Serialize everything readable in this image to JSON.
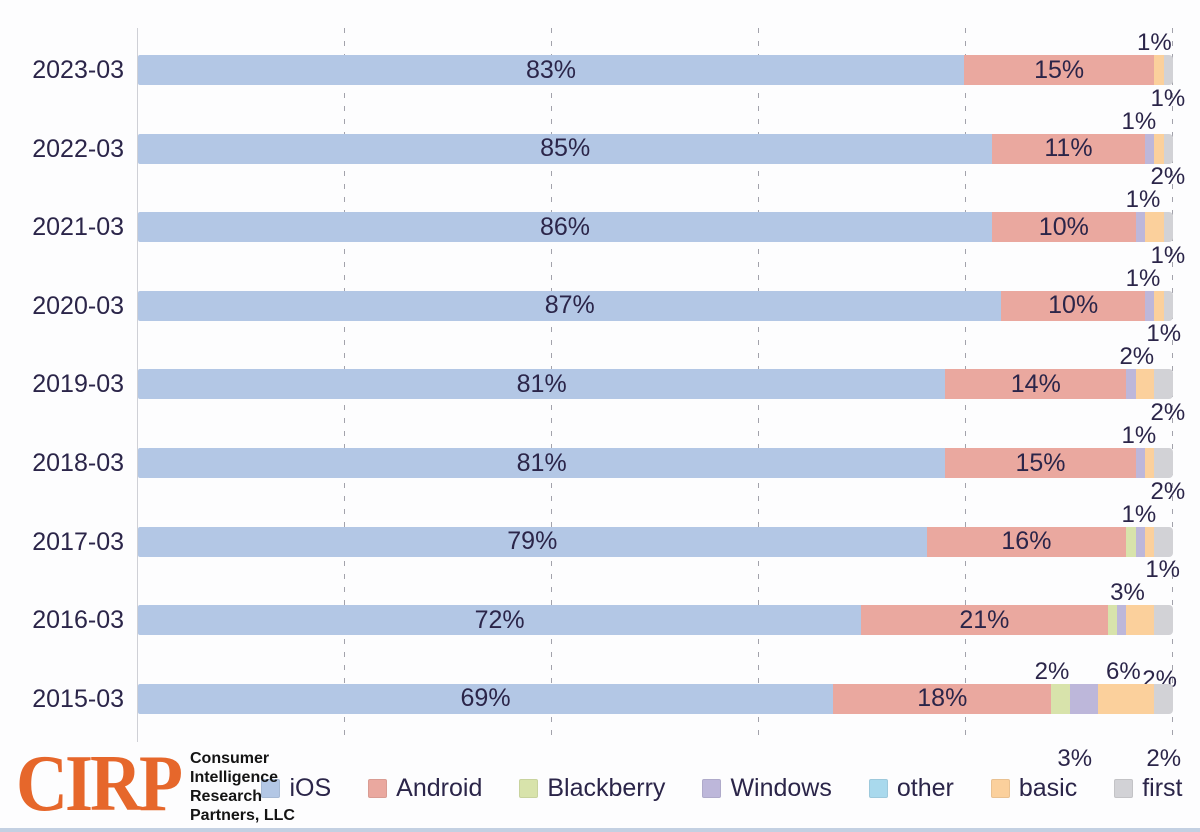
{
  "chart_data": {
    "type": "bar",
    "orientation": "horizontal",
    "stacked": true,
    "title": "",
    "xlabel": "",
    "ylabel": "",
    "xlim": [
      0,
      100
    ],
    "x_unit": "percent",
    "grid": "vertical-dashed",
    "gridlines_pct": [
      20,
      40,
      60,
      80,
      100
    ],
    "legend_position": "bottom",
    "segment_label_rule": "segments of 10% or more are labeled inside the bar; small segments labeled with staggered callouts at bar end",
    "categories": [
      "2023-03",
      "2022-03",
      "2021-03",
      "2020-03",
      "2019-03",
      "2018-03",
      "2017-03",
      "2016-03",
      "2015-03"
    ],
    "series": [
      {
        "name": "iOS",
        "color": "#b3c7e5",
        "values": [
          83,
          85,
          86,
          87,
          81,
          81,
          79,
          72,
          69
        ]
      },
      {
        "name": "Android",
        "color": "#eaa89f",
        "values": [
          15,
          11,
          10,
          10,
          14,
          15,
          16,
          21,
          18
        ]
      },
      {
        "name": "Blackberry",
        "color": "#d8e3ab",
        "values": [
          0,
          0,
          0,
          0,
          0,
          0,
          1,
          1,
          2
        ]
      },
      {
        "name": "Windows",
        "color": "#bdb7da",
        "values": [
          0,
          1,
          1,
          1,
          1,
          1,
          1,
          1,
          3
        ]
      },
      {
        "name": "other",
        "color": "#a9d9ed",
        "values": [
          0,
          0,
          0,
          0,
          0,
          0,
          0,
          0,
          0
        ]
      },
      {
        "name": "basic",
        "color": "#fbd09c",
        "values": [
          1,
          1,
          2,
          1,
          2,
          1,
          1,
          3,
          6
        ]
      },
      {
        "name": "first",
        "color": "#d2d2d6",
        "values": [
          1,
          1,
          1,
          1,
          2,
          2,
          2,
          2,
          2
        ]
      }
    ],
    "callouts": [
      {
        "category": "2023-03",
        "labels": [
          {
            "text": "1%",
            "tier": "low",
            "x": 98.3
          }
        ]
      },
      {
        "category": "2022-03",
        "labels": [
          {
            "text": "1%",
            "tier": "high",
            "x": 99.6
          },
          {
            "text": "1%",
            "tier": "low",
            "x": 96.8
          }
        ]
      },
      {
        "category": "2021-03",
        "labels": [
          {
            "text": "2%",
            "tier": "high",
            "x": 99.6
          },
          {
            "text": "1%",
            "tier": "low",
            "x": 97.2
          }
        ]
      },
      {
        "category": "2020-03",
        "labels": [
          {
            "text": "1%",
            "tier": "high",
            "x": 99.6
          },
          {
            "text": "1%",
            "tier": "low",
            "x": 97.2
          }
        ]
      },
      {
        "category": "2019-03",
        "labels": [
          {
            "text": "1%",
            "tier": "high",
            "x": 99.2
          },
          {
            "text": "2%",
            "tier": "low",
            "x": 96.6
          }
        ]
      },
      {
        "category": "2018-03",
        "labels": [
          {
            "text": "2%",
            "tier": "high",
            "x": 99.6
          },
          {
            "text": "1%",
            "tier": "low",
            "x": 96.8
          }
        ]
      },
      {
        "category": "2017-03",
        "labels": [
          {
            "text": "2%",
            "tier": "high",
            "x": 99.6
          },
          {
            "text": "1%",
            "tier": "low",
            "x": 96.8
          }
        ]
      },
      {
        "category": "2016-03",
        "labels": [
          {
            "text": "1%",
            "tier": "high",
            "x": 99.1
          },
          {
            "text": "3%",
            "tier": "low",
            "x": 95.7
          },
          {
            "text": "2%",
            "tier": "below",
            "x": 98.8
          }
        ]
      },
      {
        "category": "2015-03",
        "labels": [
          {
            "text": "2%",
            "tier": "low",
            "x": 88.4
          },
          {
            "text": "6%",
            "tier": "low",
            "x": 95.3
          },
          {
            "text": "3%",
            "tier": "below",
            "x": 90.6
          },
          {
            "text": "2%",
            "tier": "below",
            "x": 99.2
          }
        ]
      }
    ]
  },
  "legend": {
    "items": [
      {
        "label": "iOS",
        "color": "#b3c7e5"
      },
      {
        "label": "Android",
        "color": "#eaa89f"
      },
      {
        "label": "Blackberry",
        "color": "#d8e3ab"
      },
      {
        "label": "Windows",
        "color": "#bdb7da"
      },
      {
        "label": "other",
        "color": "#a9d9ed"
      },
      {
        "label": "basic",
        "color": "#fbd09c"
      },
      {
        "label": "first",
        "color": "#d2d2d6"
      }
    ]
  },
  "logo": {
    "brand": "CIRP",
    "brand_color": "#e6672b",
    "lines": [
      "Consumer",
      "Intelligence",
      "Research",
      "Partners, LLC"
    ]
  }
}
